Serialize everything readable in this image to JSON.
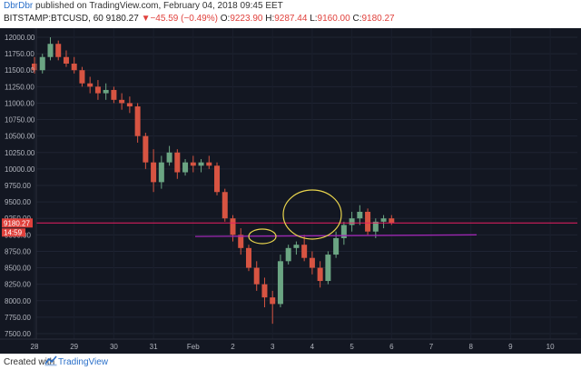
{
  "header": {
    "author": "DbrDbr",
    "published": " published on TradingView.com, February 04, 2018 09:45 EET",
    "symbol": "BITSTAMP:BTCUSD, 60",
    "last": "9180.27",
    "change_arrow": "▼",
    "change": "−45.59 (−0.49%)",
    "o_label": "O:",
    "o": "9223.90",
    "h_label": "H:",
    "h": "9287.44",
    "l_label": "L:",
    "l": "9160.00",
    "c_label": "C:",
    "c": "9180.27"
  },
  "price_axis": {
    "ticks": [
      "12000.00",
      "11750.00",
      "11500.00",
      "11250.00",
      "11000.00",
      "10750.00",
      "10500.00",
      "10250.00",
      "10000.00",
      "9750.00",
      "9500.00",
      "9250.00",
      "9000.00",
      "8750.00",
      "8500.00",
      "8250.00",
      "8000.00",
      "7750.00",
      "7500.00"
    ],
    "last_price_tag": "9180.27",
    "countdown_tag": "14:59"
  },
  "time_axis": {
    "ticks": [
      "28",
      "29",
      "30",
      "31",
      "Feb",
      "2",
      "3",
      "4",
      "5",
      "6",
      "7",
      "8",
      "9",
      "10"
    ]
  },
  "chart_data": {
    "type": "candlestick",
    "symbol": "BITSTAMP:BTCUSD",
    "timeframe": "60",
    "ylim": [
      7400,
      12200
    ],
    "x_range_days": [
      "27.95",
      "10.2"
    ],
    "colors": {
      "up": "#6ba583",
      "down": "#d75442",
      "background": "#131722",
      "last_price_line": "#e91e63",
      "support_line": "#9c27b0",
      "ellipse": "#e8d44d"
    },
    "candles_approx": [
      {
        "day": 28.0,
        "o": 11600,
        "h": 11700,
        "l": 11450,
        "c": 11500
      },
      {
        "day": 28.2,
        "o": 11500,
        "h": 11750,
        "l": 11450,
        "c": 11700
      },
      {
        "day": 28.4,
        "o": 11700,
        "h": 12000,
        "l": 11650,
        "c": 11900
      },
      {
        "day": 28.6,
        "o": 11900,
        "h": 11950,
        "l": 11650,
        "c": 11700
      },
      {
        "day": 28.8,
        "o": 11700,
        "h": 11800,
        "l": 11550,
        "c": 11600
      },
      {
        "day": 29.0,
        "o": 11600,
        "h": 11700,
        "l": 11450,
        "c": 11500
      },
      {
        "day": 29.2,
        "o": 11500,
        "h": 11550,
        "l": 11250,
        "c": 11300
      },
      {
        "day": 29.4,
        "o": 11300,
        "h": 11400,
        "l": 11150,
        "c": 11250
      },
      {
        "day": 29.6,
        "o": 11250,
        "h": 11350,
        "l": 11050,
        "c": 11150
      },
      {
        "day": 29.8,
        "o": 11150,
        "h": 11300,
        "l": 11050,
        "c": 11200
      },
      {
        "day": 30.0,
        "o": 11200,
        "h": 11250,
        "l": 11000,
        "c": 11050
      },
      {
        "day": 30.2,
        "o": 11050,
        "h": 11150,
        "l": 10900,
        "c": 11000
      },
      {
        "day": 30.4,
        "o": 11000,
        "h": 11100,
        "l": 10850,
        "c": 10950
      },
      {
        "day": 30.6,
        "o": 10950,
        "h": 11000,
        "l": 10400,
        "c": 10500
      },
      {
        "day": 30.8,
        "o": 10500,
        "h": 10550,
        "l": 10000,
        "c": 10100
      },
      {
        "day": 31.0,
        "o": 10100,
        "h": 10300,
        "l": 9650,
        "c": 9800
      },
      {
        "day": 31.2,
        "o": 9800,
        "h": 10200,
        "l": 9700,
        "c": 10100
      },
      {
        "day": 31.4,
        "o": 10100,
        "h": 10350,
        "l": 10050,
        "c": 10250
      },
      {
        "day": 31.6,
        "o": 10250,
        "h": 10300,
        "l": 9850,
        "c": 9950
      },
      {
        "day": 31.8,
        "o": 9950,
        "h": 10150,
        "l": 9900,
        "c": 10100
      },
      {
        "day": 32.0,
        "o": 10100,
        "h": 10200,
        "l": 9950,
        "c": 10050
      },
      {
        "day": 32.2,
        "o": 10050,
        "h": 10150,
        "l": 9950,
        "c": 10100
      },
      {
        "day": 32.4,
        "o": 10100,
        "h": 10200,
        "l": 10000,
        "c": 10050
      },
      {
        "day": 32.6,
        "o": 10050,
        "h": 10100,
        "l": 9600,
        "c": 9650
      },
      {
        "day": 32.8,
        "o": 9650,
        "h": 9700,
        "l": 9200,
        "c": 9250
      },
      {
        "day": 33.0,
        "o": 9250,
        "h": 9300,
        "l": 8900,
        "c": 9000
      },
      {
        "day": 33.2,
        "o": 9000,
        "h": 9100,
        "l": 8700,
        "c": 8800
      },
      {
        "day": 33.4,
        "o": 8800,
        "h": 8850,
        "l": 8450,
        "c": 8500
      },
      {
        "day": 33.6,
        "o": 8500,
        "h": 8600,
        "l": 8150,
        "c": 8250
      },
      {
        "day": 33.8,
        "o": 8250,
        "h": 8350,
        "l": 7900,
        "c": 8050
      },
      {
        "day": 34.0,
        "o": 8050,
        "h": 8150,
        "l": 7650,
        "c": 7950
      },
      {
        "day": 34.2,
        "o": 7950,
        "h": 8700,
        "l": 7900,
        "c": 8600
      },
      {
        "day": 34.4,
        "o": 8600,
        "h": 8850,
        "l": 8550,
        "c": 8800
      },
      {
        "day": 34.6,
        "o": 8800,
        "h": 8900,
        "l": 8700,
        "c": 8850
      },
      {
        "day": 34.8,
        "o": 8850,
        "h": 9000,
        "l": 8600,
        "c": 8650
      },
      {
        "day": 35.0,
        "o": 8650,
        "h": 8750,
        "l": 8400,
        "c": 8500
      },
      {
        "day": 35.2,
        "o": 8500,
        "h": 8600,
        "l": 8200,
        "c": 8300
      },
      {
        "day": 35.4,
        "o": 8300,
        "h": 8750,
        "l": 8250,
        "c": 8700
      },
      {
        "day": 35.6,
        "o": 8700,
        "h": 9050,
        "l": 8650,
        "c": 8950
      },
      {
        "day": 35.8,
        "o": 8950,
        "h": 9200,
        "l": 8850,
        "c": 9150
      },
      {
        "day": 36.0,
        "o": 9150,
        "h": 9350,
        "l": 9050,
        "c": 9250
      },
      {
        "day": 36.2,
        "o": 9250,
        "h": 9450,
        "l": 9150,
        "c": 9350
      },
      {
        "day": 36.4,
        "o": 9350,
        "h": 9400,
        "l": 9000,
        "c": 9050
      },
      {
        "day": 36.6,
        "o": 9050,
        "h": 9250,
        "l": 8950,
        "c": 9200
      },
      {
        "day": 36.8,
        "o": 9200,
        "h": 9300,
        "l": 9100,
        "c": 9250
      },
      {
        "day": 37.0,
        "o": 9250,
        "h": 9300,
        "l": 9150,
        "c": 9180
      }
    ]
  }
}
